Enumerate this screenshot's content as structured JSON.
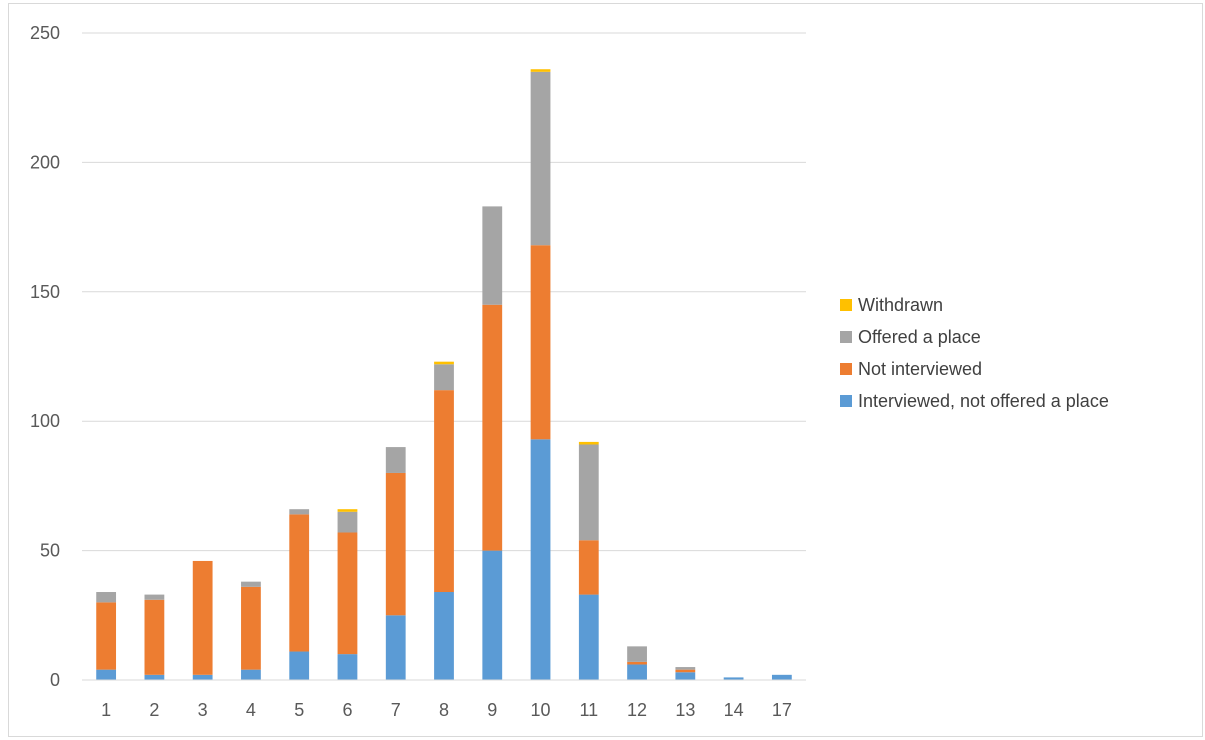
{
  "chart_data": {
    "type": "bar",
    "stacked": true,
    "title": "",
    "xlabel": "",
    "ylabel": "",
    "categories": [
      "1",
      "2",
      "3",
      "4",
      "5",
      "6",
      "7",
      "8",
      "9",
      "10",
      "11",
      "12",
      "13",
      "14",
      "17"
    ],
    "series": [
      {
        "name": "Interviewed, not offered a place",
        "color": "#5B9BD5",
        "values": [
          4,
          2,
          2,
          4,
          11,
          10,
          25,
          34,
          50,
          93,
          33,
          6,
          3,
          1,
          2
        ]
      },
      {
        "name": "Not interviewed",
        "color": "#ED7D31",
        "values": [
          26,
          29,
          44,
          32,
          53,
          47,
          55,
          78,
          95,
          75,
          21,
          1,
          1,
          0,
          0
        ]
      },
      {
        "name": "Offered a place",
        "color": "#A5A5A5",
        "values": [
          4,
          2,
          0,
          2,
          2,
          8,
          10,
          10,
          38,
          67,
          37,
          6,
          1,
          0,
          0
        ]
      },
      {
        "name": "Withdrawn",
        "color": "#FFC000",
        "values": [
          0,
          0,
          0,
          0,
          0,
          1,
          0,
          1,
          0,
          1,
          1,
          0,
          0,
          0,
          0
        ]
      }
    ],
    "ylim": [
      0,
      250
    ],
    "yticks": [
      0,
      50,
      100,
      150,
      200,
      250
    ],
    "grid": true,
    "legend_position": "right"
  }
}
